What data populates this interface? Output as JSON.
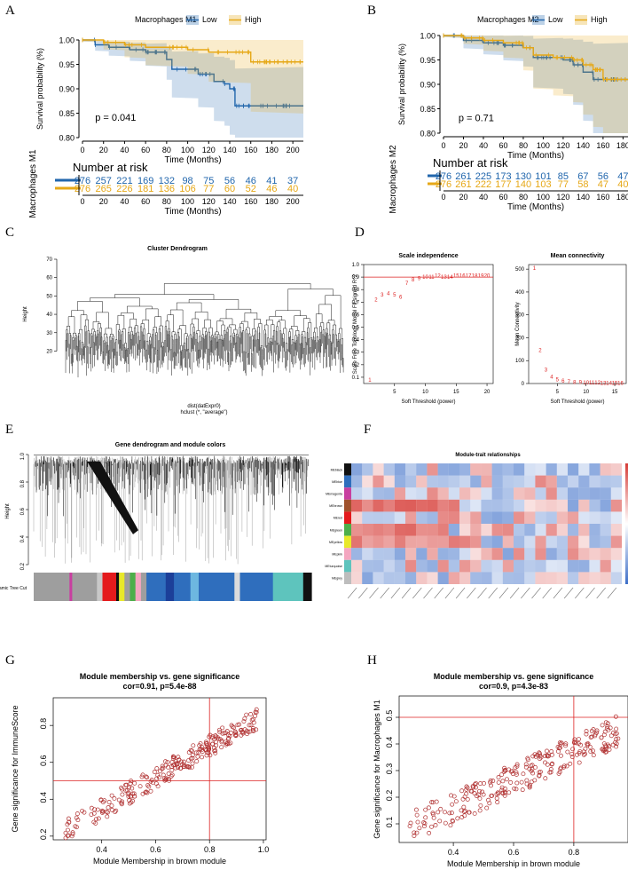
{
  "panels": {
    "A": "A",
    "B": "B",
    "C": "C",
    "D": "D",
    "E": "E",
    "F": "F",
    "G": "G",
    "H": "H"
  },
  "chart_data": [
    {
      "id": "A",
      "type": "line",
      "legend_title": "Macrophages M1",
      "legend_position": "top",
      "series": [
        {
          "name": "Low",
          "color": "#2166AC",
          "x": [
            0,
            12,
            25,
            45,
            60,
            80,
            85,
            100,
            110,
            125,
            135,
            140,
            145,
            155,
            200,
            210
          ],
          "y": [
            1.0,
            0.99,
            0.985,
            0.98,
            0.975,
            0.96,
            0.94,
            0.94,
            0.93,
            0.915,
            0.91,
            0.9,
            0.865,
            0.865,
            0.865,
            0.865
          ]
        },
        {
          "name": "High",
          "color": "#E6A817",
          "x": [
            0,
            20,
            40,
            60,
            80,
            100,
            120,
            140,
            155,
            160,
            210
          ],
          "y": [
            1.0,
            0.995,
            0.99,
            0.985,
            0.985,
            0.98,
            0.975,
            0.975,
            0.975,
            0.955,
            0.955
          ]
        }
      ],
      "pvalue": "p = 0.041",
      "xlabel": "Time (Months)",
      "ylabel": "Survival probability (%)",
      "xticks": [
        "0",
        "20",
        "40",
        "60",
        "80",
        "100",
        "120",
        "140",
        "160",
        "180",
        "200"
      ],
      "yticks": [
        "0.80",
        "0.85",
        "0.90",
        "0.95",
        "1.00"
      ],
      "xlim": [
        0,
        210
      ],
      "ylim": [
        0.8,
        1.0
      ],
      "risk_title": "Number at risk",
      "risk_ylabel": "Macrophages M1",
      "risk_low": [
        "276",
        "257",
        "221",
        "169",
        "132",
        "98",
        "75",
        "56",
        "46",
        "41",
        "37"
      ],
      "risk_high": [
        "276",
        "265",
        "226",
        "181",
        "136",
        "106",
        "77",
        "60",
        "52",
        "46",
        "40"
      ]
    },
    {
      "id": "B",
      "type": "line",
      "legend_title": "Macrophages M2",
      "legend_position": "top",
      "series": [
        {
          "name": "Low",
          "color": "#2166AC",
          "x": [
            0,
            20,
            40,
            60,
            80,
            90,
            110,
            120,
            130,
            140,
            150,
            165,
            185
          ],
          "y": [
            1.0,
            0.99,
            0.985,
            0.98,
            0.975,
            0.955,
            0.955,
            0.95,
            0.94,
            0.925,
            0.91,
            0.91,
            0.91
          ]
        },
        {
          "name": "High",
          "color": "#E6A817",
          "x": [
            0,
            20,
            40,
            60,
            80,
            90,
            110,
            130,
            140,
            150,
            160,
            185
          ],
          "y": [
            1.0,
            0.995,
            0.99,
            0.985,
            0.975,
            0.96,
            0.955,
            0.95,
            0.94,
            0.93,
            0.91,
            0.91
          ]
        }
      ],
      "pvalue": "p = 0.71",
      "xlabel": "Time (Months)",
      "ylabel": "Survival probability (%)",
      "xticks": [
        "0",
        "20",
        "40",
        "60",
        "80",
        "100",
        "120",
        "140",
        "160",
        "180"
      ],
      "yticks": [
        "0.80",
        "0.85",
        "0.90",
        "0.95",
        "1.00"
      ],
      "xlim": [
        0,
        185
      ],
      "ylim": [
        0.8,
        1.0
      ],
      "risk_title": "Number at risk",
      "risk_ylabel": "Macrophages M2",
      "risk_low": [
        "276",
        "261",
        "225",
        "173",
        "130",
        "101",
        "85",
        "67",
        "56",
        "47"
      ],
      "risk_high": [
        "276",
        "261",
        "222",
        "177",
        "140",
        "103",
        "77",
        "58",
        "47",
        "40"
      ]
    },
    {
      "id": "C",
      "type": "other",
      "title": "Cluster Dendrogram",
      "ylabel": "Height",
      "xlabel_line1": "dist(datExpr0)",
      "xlabel_line2": "hclust (*, \"average\")",
      "yticks": [
        "20",
        "30",
        "40",
        "50",
        "60",
        "70"
      ],
      "ylim": [
        12,
        70
      ]
    },
    {
      "id": "D1",
      "type": "scatter",
      "title": "Scale independence",
      "xlabel": "Soft Threshold (power)",
      "ylabel": "Scale Free Topology Model Fit,signed R^2",
      "xticks": [
        "5",
        "10",
        "15",
        "20"
      ],
      "yticks": [
        "0.1",
        "0.2",
        "0.3",
        "0.4",
        "0.5",
        "0.6",
        "0.7",
        "0.8",
        "0.9",
        "1.0"
      ],
      "xlim": [
        0,
        21
      ],
      "ylim": [
        0.05,
        1.0
      ],
      "hline": 0.9,
      "points": [
        [
          1,
          0.08
        ],
        [
          2,
          0.72
        ],
        [
          3,
          0.76
        ],
        [
          4,
          0.77
        ],
        [
          5,
          0.76
        ],
        [
          6,
          0.74
        ],
        [
          7,
          0.85
        ],
        [
          8,
          0.88
        ],
        [
          9,
          0.89
        ],
        [
          10,
          0.9
        ],
        [
          11,
          0.9
        ],
        [
          12,
          0.91
        ],
        [
          13,
          0.9
        ],
        [
          14,
          0.9
        ],
        [
          15,
          0.91
        ],
        [
          16,
          0.91
        ],
        [
          17,
          0.91
        ],
        [
          18,
          0.91
        ],
        [
          19,
          0.91
        ],
        [
          20,
          0.91
        ]
      ]
    },
    {
      "id": "D2",
      "type": "scatter",
      "title": "Mean connectivity",
      "xlabel": "Soft Threshold (power)",
      "ylabel": "Mean Connectivity",
      "xticks": [
        "5",
        "10",
        "15"
      ],
      "yticks": [
        "0",
        "100",
        "200",
        "300",
        "400",
        "500"
      ],
      "xlim": [
        0,
        17
      ],
      "ylim": [
        0,
        520
      ],
      "points": [
        [
          1,
          505
        ],
        [
          2,
          145
        ],
        [
          3,
          60
        ],
        [
          4,
          30
        ],
        [
          5,
          18
        ],
        [
          6,
          12
        ],
        [
          7,
          8
        ],
        [
          8,
          6
        ],
        [
          9,
          5
        ],
        [
          10,
          4
        ],
        [
          11,
          3
        ],
        [
          12,
          3
        ],
        [
          13,
          2
        ],
        [
          14,
          2
        ],
        [
          15,
          2
        ],
        [
          16,
          1
        ]
      ]
    },
    {
      "id": "E",
      "type": "other",
      "title": "Gene dendrogram and module colors",
      "ylabel": "Height",
      "yticks": [
        "0.2",
        "0.4",
        "0.6",
        "0.8",
        "1.0"
      ],
      "color_bar_label": "Dynamic Tree Cut",
      "module_colors": [
        [
          "#9e9e9e",
          0.13
        ],
        [
          "#c83fa0",
          0.01
        ],
        [
          "#9e9e9e",
          0.09
        ],
        [
          "#c8c8c8",
          0.02
        ],
        [
          "#e41a1c",
          0.05
        ],
        [
          "#111111",
          0.01
        ],
        [
          "#e8e82a",
          0.02
        ],
        [
          "#9e9e9e",
          0.02
        ],
        [
          "#4daf4a",
          0.02
        ],
        [
          "#f4a6c0",
          0.02
        ],
        [
          "#9e9e9e",
          0.02
        ],
        [
          "#2f6ebd",
          0.07
        ],
        [
          "#1c3f99",
          0.03
        ],
        [
          "#2f6ebd",
          0.06
        ],
        [
          "#6db7e0",
          0.03
        ],
        [
          "#2f6ebd",
          0.13
        ],
        [
          "#dcdcdc",
          0.02
        ],
        [
          "#2f6ebd",
          0.12
        ],
        [
          "#5ec4bd",
          0.11
        ],
        [
          "#111111",
          0.03
        ]
      ]
    },
    {
      "id": "F",
      "type": "heatmap",
      "title": "Module-trait relationships",
      "rows": [
        "MEblack",
        "MEblue",
        "MEmagenta",
        "MEbrown",
        "MEred",
        "MEgreen",
        "MEyellow",
        "MEpink",
        "MEturquoise",
        "MEgrey"
      ],
      "row_colors": [
        "#111111",
        "#2f6ebd",
        "#c83fa0",
        "#a0522d",
        "#e41a1c",
        "#4daf4a",
        "#e8e82a",
        "#f4a6c0",
        "#5ec4bd",
        "#bdbdbd"
      ],
      "n_cols": 25
    },
    {
      "id": "G",
      "type": "scatter",
      "title": "Module membership vs. gene significance",
      "subtitle": "cor=0.91, p=5.4e-88",
      "xlabel": "Module Membership in brown module",
      "ylabel": "Gene significance for  ImmuneScore",
      "xticks": [
        "0.4",
        "0.6",
        "0.8",
        "1.0"
      ],
      "yticks": [
        "0.2",
        "0.4",
        "0.6",
        "0.8"
      ],
      "xlim": [
        0.22,
        1.01
      ],
      "ylim": [
        0.18,
        0.95
      ],
      "vline": 0.8,
      "hline": 0.5
    },
    {
      "id": "H",
      "type": "scatter",
      "title": "Module membership vs. gene significance",
      "subtitle": "cor=0.9, p=4.3e-83",
      "xlabel": "Module Membership in brown module",
      "ylabel": "Gene significance for  Macrophages M1",
      "xticks": [
        "0.4",
        "0.6",
        "0.8"
      ],
      "yticks": [
        "0.1",
        "0.2",
        "0.3",
        "0.4",
        "0.5"
      ],
      "xlim": [
        0.22,
        0.98
      ],
      "ylim": [
        0.03,
        0.58
      ],
      "vline": 0.8,
      "hline": 0.5
    }
  ]
}
